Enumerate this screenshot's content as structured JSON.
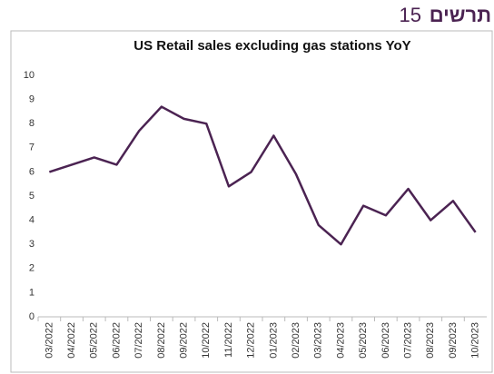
{
  "header": {
    "word": "תרשים",
    "number": "15"
  },
  "chart_data": {
    "type": "line",
    "title": "US Retail sales excluding gas stations YoY",
    "categories": [
      "03/2022",
      "04/2022",
      "05/2022",
      "06/2022",
      "07/2022",
      "08/2022",
      "09/2022",
      "10/2022",
      "11/2022",
      "12/2022",
      "01/2023",
      "02/2023",
      "03/2023",
      "04/2023",
      "05/2023",
      "06/2023",
      "07/2023",
      "08/2023",
      "09/2023",
      "10/2023"
    ],
    "series": [
      {
        "name": "US Retail sales excluding gas stations YoY",
        "color": "#4b2352",
        "values": [
          6.0,
          6.3,
          6.6,
          6.3,
          7.7,
          8.7,
          8.2,
          8.0,
          5.4,
          6.0,
          7.5,
          5.9,
          3.8,
          3.0,
          4.6,
          4.2,
          5.3,
          4.0,
          4.8,
          3.5
        ]
      }
    ],
    "ylim": [
      0,
      10
    ],
    "yticks": [
      0,
      1,
      2,
      3,
      4,
      5,
      6,
      7,
      8,
      9,
      10
    ],
    "grid": false
  }
}
